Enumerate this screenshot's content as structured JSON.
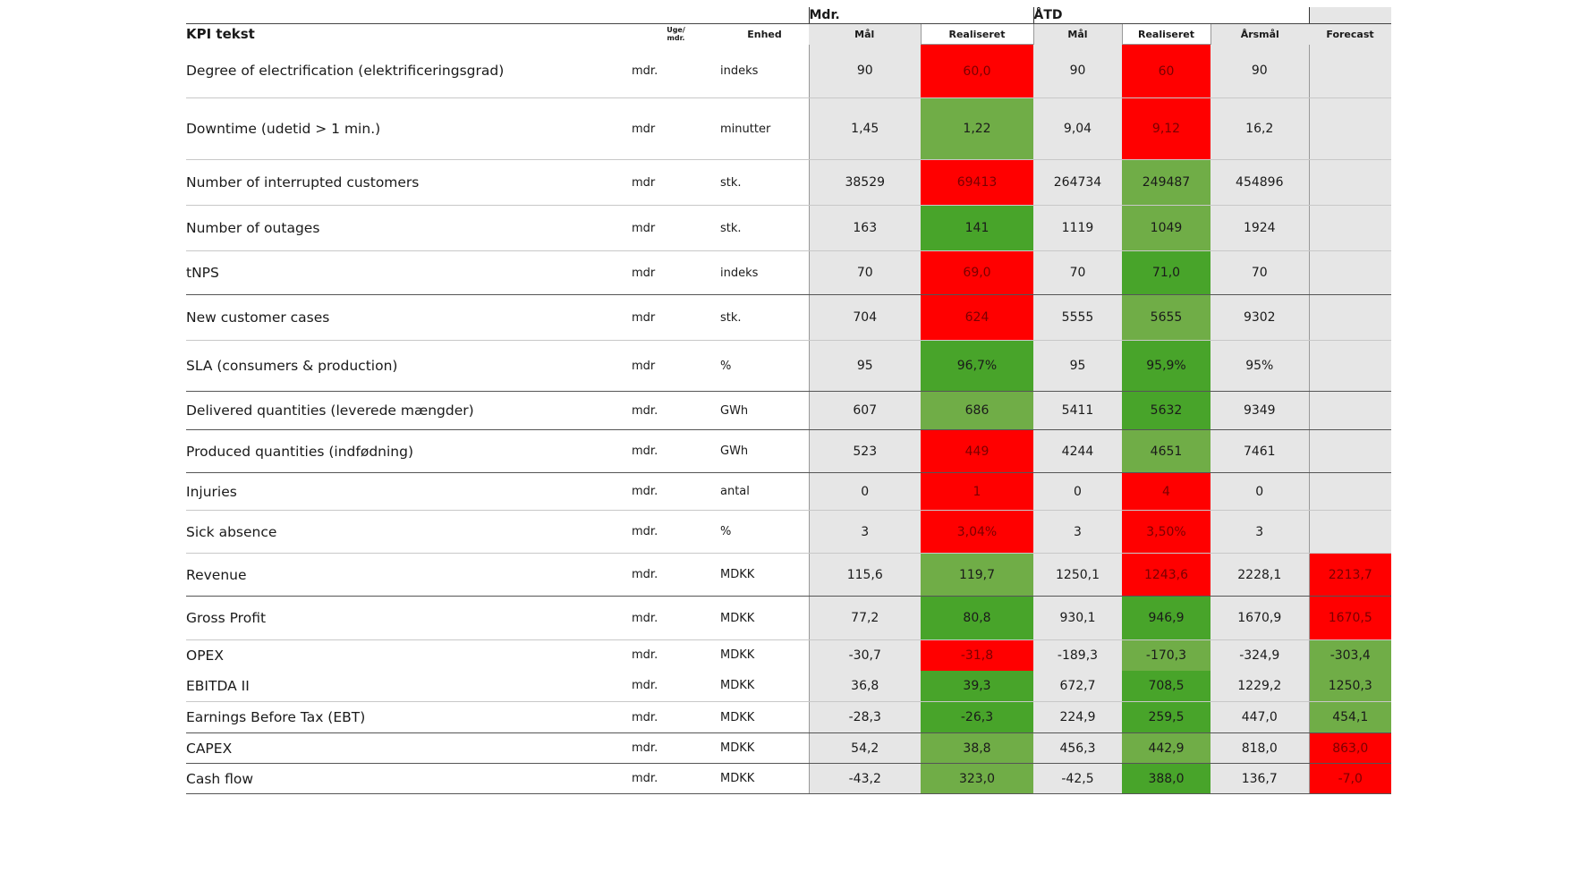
{
  "header": {
    "group_month": "Mdr.",
    "group_ytd": "ÅTD",
    "kpi_text": "KPI tekst",
    "frequency": "Uge/\nmdr.",
    "unit": "Enhed",
    "target": "Mål",
    "realized": "Realiseret",
    "target_ytd": "Mål",
    "realized_ytd": "Realiseret",
    "annual_target": "Årsmål",
    "forecast": "Forecast"
  },
  "colors": {
    "red": "#ff0000",
    "green": "#48a42a",
    "light_green": "#70ad47",
    "grey": "#e6e6e6"
  },
  "rows": [
    {
      "kpi": "Degree of electrification (elektrificeringsgrad)",
      "freq": "mdr.",
      "unit": "indeks",
      "target": "90",
      "realized": "60,0",
      "realized_status": "red",
      "target_ytd": "90",
      "realized_ytd": "60",
      "realized_ytd_status": "red",
      "annual": "90",
      "forecast": "",
      "forecast_status": ""
    },
    {
      "kpi": "Downtime (udetid > 1 min.)",
      "freq": "mdr",
      "unit": "minutter",
      "target": "1,45",
      "realized": "1,22",
      "realized_status": "lgreen",
      "target_ytd": "9,04",
      "realized_ytd": "9,12",
      "realized_ytd_status": "red",
      "annual": "16,2",
      "forecast": "",
      "forecast_status": ""
    },
    {
      "kpi": "Number of interrupted customers",
      "freq": "mdr",
      "unit": "stk.",
      "target": "38529",
      "realized": "69413",
      "realized_status": "red",
      "target_ytd": "264734",
      "realized_ytd": "249487",
      "realized_ytd_status": "lgreen",
      "annual": "454896",
      "forecast": "",
      "forecast_status": ""
    },
    {
      "kpi": "Number of outages",
      "freq": "mdr",
      "unit": "stk.",
      "target": "163",
      "realized": "141",
      "realized_status": "green",
      "target_ytd": "1119",
      "realized_ytd": "1049",
      "realized_ytd_status": "lgreen",
      "annual": "1924",
      "forecast": "",
      "forecast_status": ""
    },
    {
      "kpi": "tNPS",
      "freq": "mdr",
      "unit": "indeks",
      "target": "70",
      "realized": "69,0",
      "realized_status": "red",
      "target_ytd": "70",
      "realized_ytd": "71,0",
      "realized_ytd_status": "green",
      "annual": "70",
      "forecast": "",
      "forecast_status": ""
    },
    {
      "kpi": "New customer cases",
      "freq": "mdr",
      "unit": "stk.",
      "target": "704",
      "realized": "624",
      "realized_status": "red",
      "target_ytd": "5555",
      "realized_ytd": "5655",
      "realized_ytd_status": "lgreen",
      "annual": "9302",
      "forecast": "",
      "forecast_status": ""
    },
    {
      "kpi": "SLA (consumers & production)",
      "freq": "mdr",
      "unit": "%",
      "target": "95",
      "realized": "96,7%",
      "realized_status": "green",
      "target_ytd": "95",
      "realized_ytd": "95,9%",
      "realized_ytd_status": "green",
      "annual": "95%",
      "forecast": "",
      "forecast_status": ""
    },
    {
      "kpi": "Delivered quantities (leverede mængder)",
      "freq": "mdr.",
      "unit": "GWh",
      "target": "607",
      "realized": "686",
      "realized_status": "lgreen",
      "target_ytd": "5411",
      "realized_ytd": "5632",
      "realized_ytd_status": "green",
      "annual": "9349",
      "forecast": "",
      "forecast_status": ""
    },
    {
      "kpi": "Produced quantities (indfødning)",
      "freq": "mdr.",
      "unit": "GWh",
      "target": "523",
      "realized": "449",
      "realized_status": "red",
      "target_ytd": "4244",
      "realized_ytd": "4651",
      "realized_ytd_status": "lgreen",
      "annual": "7461",
      "forecast": "",
      "forecast_status": ""
    },
    {
      "kpi": "Injuries",
      "freq": "mdr.",
      "unit": "antal",
      "target": "0",
      "realized": "1",
      "realized_status": "red",
      "target_ytd": "0",
      "realized_ytd": "4",
      "realized_ytd_status": "red",
      "annual": "0",
      "forecast": "",
      "forecast_status": ""
    },
    {
      "kpi": "Sick absence",
      "freq": "mdr.",
      "unit": "%",
      "target": "3",
      "realized": "3,04%",
      "realized_status": "red",
      "target_ytd": "3",
      "realized_ytd": "3,50%",
      "realized_ytd_status": "red",
      "annual": "3",
      "forecast": "",
      "forecast_status": ""
    },
    {
      "kpi": "Revenue",
      "freq": "mdr.",
      "unit": "MDKK",
      "target": "115,6",
      "realized": "119,7",
      "realized_status": "lgreen",
      "target_ytd": "1250,1",
      "realized_ytd": "1243,6",
      "realized_ytd_status": "red",
      "annual": "2228,1",
      "forecast": "2213,7",
      "forecast_status": "red"
    },
    {
      "kpi": "Gross Profit",
      "freq": "mdr.",
      "unit": "MDKK",
      "target": "77,2",
      "realized": "80,8",
      "realized_status": "green",
      "target_ytd": "930,1",
      "realized_ytd": "946,9",
      "realized_ytd_status": "green",
      "annual": "1670,9",
      "forecast": "1670,5",
      "forecast_status": "red"
    },
    {
      "kpi": "OPEX",
      "freq": "mdr.",
      "unit": "MDKK",
      "target": "-30,7",
      "realized": "-31,8",
      "realized_status": "red",
      "target_ytd": "-189,3",
      "realized_ytd": "-170,3",
      "realized_ytd_status": "lgreen",
      "annual": "-324,9",
      "forecast": "-303,4",
      "forecast_status": "lgreen"
    },
    {
      "kpi": "EBITDA II",
      "freq": "mdr.",
      "unit": "MDKK",
      "target": "36,8",
      "realized": "39,3",
      "realized_status": "green",
      "target_ytd": "672,7",
      "realized_ytd": "708,5",
      "realized_ytd_status": "green",
      "annual": "1229,2",
      "forecast": "1250,3",
      "forecast_status": "lgreen"
    },
    {
      "kpi": "Earnings Before Tax (EBT)",
      "freq": "mdr.",
      "unit": "MDKK",
      "target": "-28,3",
      "realized": "-26,3",
      "realized_status": "green",
      "target_ytd": "224,9",
      "realized_ytd": "259,5",
      "realized_ytd_status": "green",
      "annual": "447,0",
      "forecast": "454,1",
      "forecast_status": "lgreen"
    },
    {
      "kpi": "CAPEX",
      "freq": "mdr.",
      "unit": "MDKK",
      "target": "54,2",
      "realized": "38,8",
      "realized_status": "lgreen",
      "target_ytd": "456,3",
      "realized_ytd": "442,9",
      "realized_ytd_status": "lgreen",
      "annual": "818,0",
      "forecast": "863,0",
      "forecast_status": "red"
    },
    {
      "kpi": "Cash flow",
      "freq": "mdr.",
      "unit": "MDKK",
      "target": "-43,2",
      "realized": "323,0",
      "realized_status": "lgreen",
      "target_ytd": "-42,5",
      "realized_ytd": "388,0",
      "realized_ytd_status": "green",
      "annual": "136,7",
      "forecast": "-7,0",
      "forecast_status": "red"
    }
  ]
}
